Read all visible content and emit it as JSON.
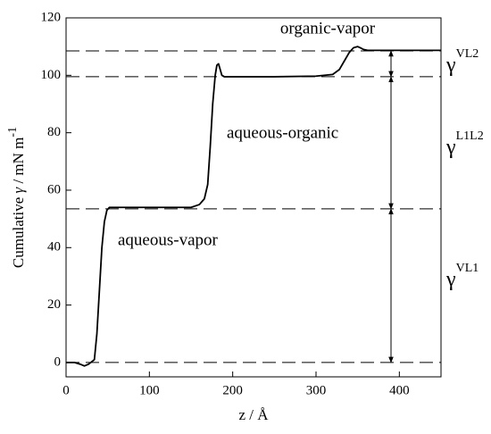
{
  "chart_data": {
    "type": "line",
    "x_label": {
      "text": "z / Å"
    },
    "y_label": {
      "text": "Cumulative ",
      "symbol": "γ",
      "unit": " / mN m",
      "sup": "-1"
    },
    "xlim": [
      0,
      450
    ],
    "xticks": [
      0,
      100,
      200,
      300,
      400
    ],
    "ylim": [
      -5,
      120
    ],
    "yticks": [
      0,
      20,
      40,
      60,
      80,
      100,
      120
    ],
    "series": [
      {
        "color": "#000000",
        "x": [
          0,
          10,
          17,
          22,
          27,
          31,
          34,
          37,
          40,
          43,
          46,
          49,
          52,
          56,
          100,
          150,
          160,
          166,
          170,
          173,
          176,
          179,
          181,
          183,
          185,
          187,
          190,
          200,
          250,
          300,
          320,
          328,
          334,
          340,
          345,
          350,
          353,
          357,
          362,
          450
        ],
        "values": [
          0,
          0,
          -0.6,
          -1.2,
          -0.6,
          0.3,
          1,
          10,
          25,
          40,
          49,
          53,
          54,
          54,
          54,
          54,
          55,
          57,
          62,
          75,
          90,
          100,
          103.5,
          104,
          102,
          100,
          99.5,
          99.5,
          99.5,
          99.7,
          100.3,
          102,
          105,
          108,
          109.6,
          110,
          109.6,
          109,
          108.7,
          108.7
        ]
      }
    ],
    "hlines": [
      0,
      53.5,
      99.5,
      108.5
    ],
    "arrows": [
      {
        "z": 390,
        "from": 0,
        "to": 53.5
      },
      {
        "z": 390,
        "from": 53.5,
        "to": 99.5
      },
      {
        "z": 390,
        "from": 99.5,
        "to": 108.5
      }
    ],
    "annotations": [
      "organic-vapor",
      "aqueous-organic",
      "aqueous-vapor"
    ],
    "side_labels": [
      {
        "symbol": "γ",
        "sup": "VL2"
      },
      {
        "symbol": "γ",
        "sup": "L1L2"
      },
      {
        "symbol": "γ",
        "sup": "VL1"
      }
    ]
  }
}
